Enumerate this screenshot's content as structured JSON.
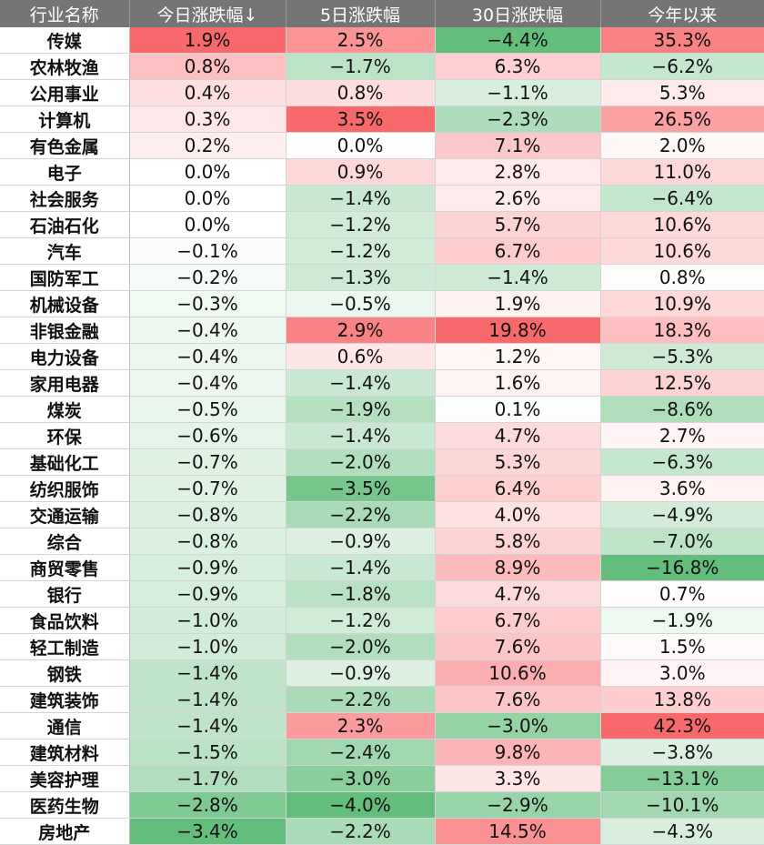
{
  "chart_data": {
    "type": "table",
    "columns": [
      "行业名称",
      "今日涨跌幅↓",
      "5日涨跌幅",
      "30日涨跌幅",
      "今年以来"
    ],
    "rows": [
      {
        "name": "传媒",
        "values": [
          1.9,
          2.5,
          -4.4,
          35.3
        ]
      },
      {
        "name": "农林牧渔",
        "values": [
          0.8,
          -1.7,
          6.3,
          -6.2
        ]
      },
      {
        "name": "公用事业",
        "values": [
          0.4,
          0.8,
          -1.1,
          5.3
        ]
      },
      {
        "name": "计算机",
        "values": [
          0.3,
          3.5,
          -2.3,
          26.5
        ]
      },
      {
        "name": "有色金属",
        "values": [
          0.2,
          0.0,
          7.1,
          2.0
        ]
      },
      {
        "name": "电子",
        "values": [
          0.0,
          0.9,
          2.8,
          11.0
        ]
      },
      {
        "name": "社会服务",
        "values": [
          0.0,
          -1.4,
          2.6,
          -6.4
        ]
      },
      {
        "name": "石油石化",
        "values": [
          0.0,
          -1.2,
          5.7,
          10.6
        ]
      },
      {
        "name": "汽车",
        "values": [
          -0.1,
          -1.2,
          6.7,
          10.6
        ]
      },
      {
        "name": "国防军工",
        "values": [
          -0.2,
          -1.3,
          -1.4,
          0.8
        ]
      },
      {
        "name": "机械设备",
        "values": [
          -0.3,
          -0.5,
          1.9,
          10.9
        ]
      },
      {
        "name": "非银金融",
        "values": [
          -0.4,
          2.9,
          19.8,
          18.3
        ]
      },
      {
        "name": "电力设备",
        "values": [
          -0.4,
          0.6,
          1.2,
          -5.3
        ]
      },
      {
        "name": "家用电器",
        "values": [
          -0.4,
          -1.4,
          1.6,
          12.5
        ]
      },
      {
        "name": "煤炭",
        "values": [
          -0.5,
          -1.9,
          0.1,
          -8.6
        ]
      },
      {
        "name": "环保",
        "values": [
          -0.6,
          -1.4,
          4.7,
          2.7
        ]
      },
      {
        "name": "基础化工",
        "values": [
          -0.7,
          -2.0,
          5.3,
          -6.3
        ]
      },
      {
        "name": "纺织服饰",
        "values": [
          -0.7,
          -3.5,
          6.4,
          3.6
        ]
      },
      {
        "name": "交通运输",
        "values": [
          -0.8,
          -2.2,
          4.0,
          -4.9
        ]
      },
      {
        "name": "综合",
        "values": [
          -0.8,
          -0.9,
          5.8,
          -7.0
        ]
      },
      {
        "name": "商贸零售",
        "values": [
          -0.9,
          -1.4,
          8.9,
          -16.8
        ]
      },
      {
        "name": "银行",
        "values": [
          -0.9,
          -1.8,
          4.7,
          0.7
        ]
      },
      {
        "name": "食品饮料",
        "values": [
          -1.0,
          -1.2,
          6.7,
          -1.9
        ]
      },
      {
        "name": "轻工制造",
        "values": [
          -1.0,
          -2.0,
          7.6,
          1.5
        ]
      },
      {
        "name": "钢铁",
        "values": [
          -1.4,
          -0.9,
          10.6,
          3.0
        ]
      },
      {
        "name": "建筑装饰",
        "values": [
          -1.4,
          -2.2,
          7.6,
          13.8
        ]
      },
      {
        "name": "通信",
        "values": [
          -1.4,
          2.3,
          -3.0,
          42.3
        ]
      },
      {
        "name": "建筑材料",
        "values": [
          -1.5,
          -2.4,
          9.8,
          -3.8
        ]
      },
      {
        "name": "美容护理",
        "values": [
          -1.7,
          -3.0,
          3.3,
          -13.1
        ]
      },
      {
        "name": "医药生物",
        "values": [
          -2.8,
          -4.0,
          -2.9,
          -10.1
        ]
      },
      {
        "name": "房地产",
        "values": [
          -3.4,
          -2.2,
          14.5,
          -4.3
        ]
      }
    ],
    "unit": "%",
    "colors": {
      "positive": "#f8696b",
      "negative": "#63be7b",
      "neutral": "#ffffff",
      "header_bg": "#757575",
      "header_text": "#ffffff"
    }
  }
}
